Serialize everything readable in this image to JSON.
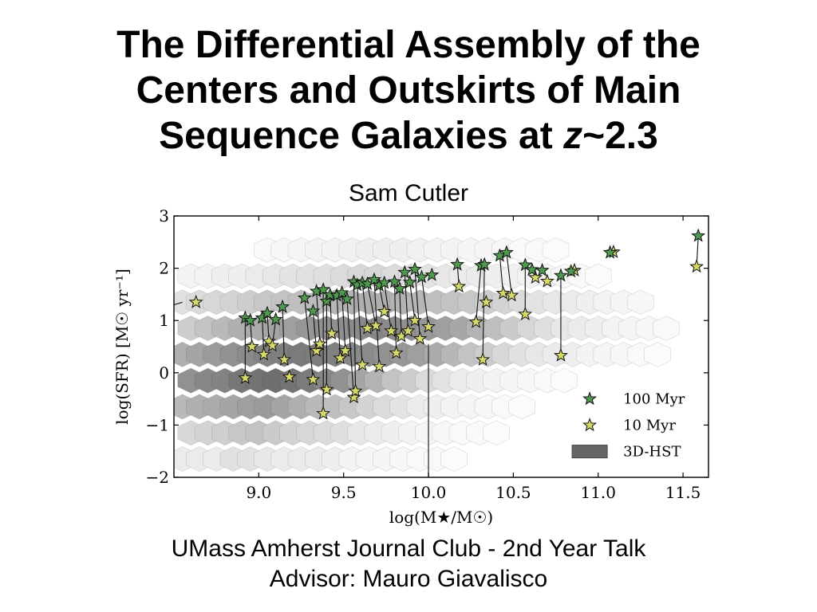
{
  "slide": {
    "title_part1": "The Differential Assembly of the",
    "title_part2": "Centers and Outskirts of Main",
    "title_part3_pre": "Sequence Galaxies at ",
    "title_part3_z": "z",
    "title_part3_post": "~2.3",
    "author": "Sam Cutler",
    "footer_line1": "UMass Amherst Journal Club - 2nd Year Talk",
    "footer_line2": "Advisor: Mauro Giavalisco"
  },
  "chart_data": {
    "type": "scatter",
    "xlabel": "log(M★/M☉)",
    "ylabel": "log(SFR) [M☉ yr⁻¹]",
    "xlim": [
      8.5,
      11.65
    ],
    "ylim": [
      -2,
      3
    ],
    "xticks": [
      "9.0",
      "9.5",
      "10.0",
      "10.5",
      "11.0",
      "11.5"
    ],
    "xtick_values": [
      9.0,
      9.5,
      10.0,
      10.5,
      11.0,
      11.5
    ],
    "yticks": [
      "3",
      "2",
      "1",
      "0",
      "−1",
      "−2"
    ],
    "ytick_values": [
      3,
      2,
      1,
      0,
      -1,
      -2
    ],
    "legend_position": "lower-right",
    "legend": [
      {
        "label": "100 Myr",
        "color": "#4f9a4f",
        "marker": "star"
      },
      {
        "label": "10 Myr",
        "color": "#d6d86a",
        "marker": "star"
      },
      {
        "label": "3D-HST",
        "color": "#666666",
        "marker": "rect"
      }
    ],
    "vertical_line_x": 10.0,
    "series": [
      {
        "name": "100 Myr",
        "marker": "star",
        "color": "#4f9a4f",
        "x": [
          8.92,
          8.95,
          9.02,
          9.05,
          9.1,
          9.14,
          9.27,
          9.32,
          9.34,
          9.38,
          9.4,
          9.42,
          9.46,
          9.49,
          9.52,
          9.56,
          9.58,
          9.61,
          9.64,
          9.68,
          9.71,
          9.74,
          9.8,
          9.83,
          9.86,
          9.89,
          9.92,
          9.96,
          10.02,
          10.17,
          10.31,
          10.33,
          10.42,
          10.46,
          10.57,
          10.61,
          10.67,
          10.78,
          10.84,
          11.07,
          11.59
        ],
        "y": [
          1.05,
          1.0,
          1.05,
          1.14,
          1.02,
          1.26,
          1.43,
          1.18,
          1.56,
          1.59,
          1.37,
          1.49,
          1.48,
          1.53,
          1.41,
          1.74,
          1.68,
          1.72,
          1.7,
          1.78,
          1.67,
          1.72,
          1.74,
          1.61,
          1.92,
          1.73,
          1.98,
          1.83,
          1.87,
          2.07,
          2.05,
          2.07,
          2.24,
          2.3,
          2.06,
          1.97,
          1.96,
          1.86,
          1.94,
          2.3,
          2.62
        ]
      },
      {
        "name": "10 Myr",
        "marker": "star",
        "color": "#d6d86a",
        "x": [
          8.63,
          8.92,
          8.96,
          9.03,
          9.06,
          9.08,
          9.15,
          9.18,
          9.32,
          9.34,
          9.36,
          9.38,
          9.4,
          9.43,
          9.48,
          9.51,
          9.56,
          9.57,
          9.61,
          9.64,
          9.69,
          9.71,
          9.74,
          9.78,
          9.81,
          9.84,
          9.88,
          9.92,
          9.95,
          10.0,
          10.18,
          10.28,
          10.32,
          10.34,
          10.44,
          10.49,
          10.57,
          10.63,
          10.7,
          10.78,
          10.86,
          11.09,
          11.58
        ],
        "y": [
          1.35,
          -0.1,
          0.5,
          0.35,
          0.6,
          0.52,
          0.25,
          -0.08,
          -0.13,
          0.42,
          0.55,
          -0.78,
          -0.32,
          0.75,
          0.28,
          0.42,
          -0.47,
          -0.35,
          0.15,
          0.85,
          0.9,
          0.12,
          1.17,
          0.8,
          0.38,
          0.7,
          0.8,
          1.0,
          0.65,
          0.88,
          1.65,
          0.97,
          0.25,
          1.35,
          1.52,
          1.48,
          1.12,
          1.82,
          1.75,
          0.33,
          1.96,
          2.31,
          2.03
        ]
      },
      {
        "name": "3D-HST",
        "type": "hexbin",
        "color": "#666666",
        "hex_centers_x": [
          8.55,
          8.65,
          8.75,
          8.85,
          8.95,
          9.05,
          9.15,
          9.25,
          9.35,
          9.45,
          9.55,
          9.65,
          9.75,
          9.85,
          9.95,
          10.05,
          10.15,
          8.6,
          8.7,
          8.8,
          8.9,
          9.0,
          9.1,
          9.2,
          9.3,
          9.4,
          9.5,
          9.6,
          9.7,
          9.8,
          9.9,
          10.0,
          10.1,
          10.2,
          10.3,
          10.4,
          8.55,
          8.65,
          8.75,
          8.85,
          8.95,
          9.05,
          9.15,
          9.25,
          9.35,
          9.45,
          9.55,
          9.65,
          9.75,
          9.85,
          9.95,
          10.05,
          10.15,
          10.25,
          10.35,
          10.45,
          10.55,
          8.6,
          8.7,
          8.8,
          8.9,
          9.0,
          9.1,
          9.2,
          9.3,
          9.4,
          9.5,
          9.6,
          9.7,
          9.8,
          9.9,
          10.0,
          10.1,
          10.2,
          10.3,
          10.4,
          10.5,
          10.6,
          10.7,
          10.8,
          8.55,
          8.65,
          8.75,
          8.85,
          8.95,
          9.05,
          9.15,
          9.25,
          9.35,
          9.45,
          9.55,
          9.65,
          9.75,
          9.85,
          9.95,
          10.05,
          10.15,
          10.25,
          10.35,
          10.45,
          10.55,
          10.65,
          10.75,
          10.85,
          10.95,
          11.05,
          11.15,
          11.25,
          11.35,
          8.6,
          8.7,
          8.8,
          8.9,
          9.0,
          9.1,
          9.2,
          9.3,
          9.4,
          9.5,
          9.6,
          9.7,
          9.8,
          9.9,
          10.0,
          10.1,
          10.2,
          10.3,
          10.4,
          10.5,
          10.6,
          10.7,
          10.8,
          10.9,
          11.0,
          11.1,
          11.2,
          11.3,
          11.4,
          8.55,
          8.65,
          8.75,
          8.85,
          8.95,
          9.05,
          9.15,
          9.25,
          9.35,
          9.45,
          9.55,
          9.65,
          9.75,
          9.85,
          9.95,
          10.05,
          10.15,
          10.25,
          10.35,
          10.45,
          10.55,
          10.65,
          10.75,
          10.85,
          10.95,
          11.05,
          11.15,
          11.25,
          8.6,
          8.7,
          8.8,
          8.9,
          9.0,
          9.1,
          9.2,
          9.3,
          9.4,
          9.5,
          9.6,
          9.7,
          9.8,
          9.9,
          10.0,
          10.1,
          10.2,
          10.3,
          10.4,
          10.5,
          10.6,
          10.7,
          10.8,
          10.9,
          11.0,
          9.05,
          9.15,
          9.25,
          9.35,
          9.45,
          9.55,
          9.65,
          9.75,
          9.85,
          9.95,
          10.05,
          10.15,
          10.25,
          10.35,
          10.45,
          10.55,
          10.65,
          10.75
        ],
        "hex_centers_y": [
          -1.65,
          -1.65,
          -1.65,
          -1.65,
          -1.65,
          -1.65,
          -1.65,
          -1.65,
          -1.65,
          -1.65,
          -1.65,
          -1.65,
          -1.65,
          -1.65,
          -1.65,
          -1.65,
          -1.65,
          -1.15,
          -1.15,
          -1.15,
          -1.15,
          -1.15,
          -1.15,
          -1.15,
          -1.15,
          -1.15,
          -1.15,
          -1.15,
          -1.15,
          -1.15,
          -1.15,
          -1.15,
          -1.15,
          -1.15,
          -1.15,
          -1.15,
          -0.65,
          -0.65,
          -0.65,
          -0.65,
          -0.65,
          -0.65,
          -0.65,
          -0.65,
          -0.65,
          -0.65,
          -0.65,
          -0.65,
          -0.65,
          -0.65,
          -0.65,
          -0.65,
          -0.65,
          -0.65,
          -0.65,
          -0.65,
          -0.65,
          -0.15,
          -0.15,
          -0.15,
          -0.15,
          -0.15,
          -0.15,
          -0.15,
          -0.15,
          -0.15,
          -0.15,
          -0.15,
          -0.15,
          -0.15,
          -0.15,
          -0.15,
          -0.15,
          -0.15,
          -0.15,
          -0.15,
          -0.15,
          -0.15,
          -0.15,
          -0.15,
          0.35,
          0.35,
          0.35,
          0.35,
          0.35,
          0.35,
          0.35,
          0.35,
          0.35,
          0.35,
          0.35,
          0.35,
          0.35,
          0.35,
          0.35,
          0.35,
          0.35,
          0.35,
          0.35,
          0.35,
          0.35,
          0.35,
          0.35,
          0.35,
          0.35,
          0.35,
          0.35,
          0.35,
          0.35,
          0.85,
          0.85,
          0.85,
          0.85,
          0.85,
          0.85,
          0.85,
          0.85,
          0.85,
          0.85,
          0.85,
          0.85,
          0.85,
          0.85,
          0.85,
          0.85,
          0.85,
          0.85,
          0.85,
          0.85,
          0.85,
          0.85,
          0.85,
          0.85,
          0.85,
          0.85,
          0.85,
          0.85,
          0.85,
          1.35,
          1.35,
          1.35,
          1.35,
          1.35,
          1.35,
          1.35,
          1.35,
          1.35,
          1.35,
          1.35,
          1.35,
          1.35,
          1.35,
          1.35,
          1.35,
          1.35,
          1.35,
          1.35,
          1.35,
          1.35,
          1.35,
          1.35,
          1.35,
          1.35,
          1.35,
          1.35,
          1.35,
          1.85,
          1.85,
          1.85,
          1.85,
          1.85,
          1.85,
          1.85,
          1.85,
          1.85,
          1.85,
          1.85,
          1.85,
          1.85,
          1.85,
          1.85,
          1.85,
          1.85,
          1.85,
          1.85,
          1.85,
          1.85,
          1.85,
          1.85,
          1.85,
          1.85,
          2.35,
          2.35,
          2.35,
          2.35,
          2.35,
          2.35,
          2.35,
          2.35,
          2.35,
          2.35,
          2.35,
          2.35,
          2.35,
          2.35,
          2.35,
          2.35,
          2.35,
          2.35
        ],
        "hex_density": [
          0.1,
          0.1,
          0.1,
          0.15,
          0.15,
          0.12,
          0.1,
          0.1,
          0.1,
          0.08,
          0.06,
          0.05,
          0.05,
          0.04,
          0.03,
          0.03,
          0.02,
          0.2,
          0.22,
          0.24,
          0.28,
          0.3,
          0.26,
          0.22,
          0.2,
          0.18,
          0.16,
          0.12,
          0.1,
          0.08,
          0.06,
          0.05,
          0.04,
          0.03,
          0.03,
          0.02,
          0.35,
          0.4,
          0.42,
          0.45,
          0.48,
          0.5,
          0.45,
          0.4,
          0.35,
          0.32,
          0.28,
          0.22,
          0.18,
          0.14,
          0.1,
          0.08,
          0.06,
          0.05,
          0.04,
          0.03,
          0.02,
          0.55,
          0.6,
          0.62,
          0.68,
          0.7,
          0.72,
          0.7,
          0.66,
          0.6,
          0.55,
          0.45,
          0.38,
          0.3,
          0.25,
          0.18,
          0.14,
          0.1,
          0.08,
          0.06,
          0.05,
          0.04,
          0.03,
          0.02,
          0.4,
          0.45,
          0.5,
          0.55,
          0.58,
          0.62,
          0.64,
          0.66,
          0.65,
          0.63,
          0.6,
          0.58,
          0.55,
          0.52,
          0.48,
          0.42,
          0.36,
          0.3,
          0.25,
          0.2,
          0.15,
          0.12,
          0.1,
          0.08,
          0.06,
          0.05,
          0.04,
          0.03,
          0.02,
          0.25,
          0.3,
          0.35,
          0.4,
          0.42,
          0.45,
          0.48,
          0.52,
          0.55,
          0.56,
          0.58,
          0.6,
          0.58,
          0.56,
          0.52,
          0.48,
          0.44,
          0.38,
          0.32,
          0.26,
          0.2,
          0.16,
          0.12,
          0.1,
          0.08,
          0.06,
          0.05,
          0.04,
          0.03,
          0.15,
          0.18,
          0.2,
          0.22,
          0.25,
          0.28,
          0.3,
          0.32,
          0.34,
          0.36,
          0.38,
          0.4,
          0.4,
          0.38,
          0.36,
          0.32,
          0.3,
          0.28,
          0.25,
          0.22,
          0.18,
          0.14,
          0.12,
          0.1,
          0.08,
          0.06,
          0.05,
          0.04,
          0.06,
          0.06,
          0.08,
          0.08,
          0.1,
          0.12,
          0.14,
          0.15,
          0.16,
          0.18,
          0.2,
          0.2,
          0.18,
          0.16,
          0.14,
          0.12,
          0.1,
          0.1,
          0.08,
          0.07,
          0.06,
          0.05,
          0.04,
          0.03,
          0.02,
          0.03,
          0.04,
          0.05,
          0.06,
          0.06,
          0.07,
          0.08,
          0.08,
          0.08,
          0.07,
          0.06,
          0.06,
          0.05,
          0.05,
          0.04,
          0.03,
          0.03,
          0.02
        ]
      }
    ],
    "pairs": [
      [
        8.92,
        1.05,
        8.92,
        -0.1
      ],
      [
        8.95,
        1.0,
        8.96,
        0.5
      ],
      [
        9.02,
        1.05,
        9.03,
        0.35
      ],
      [
        9.05,
        1.14,
        9.06,
        0.6
      ],
      [
        9.1,
        1.02,
        9.08,
        0.52
      ],
      [
        9.14,
        1.26,
        9.15,
        0.25
      ],
      [
        9.27,
        1.43,
        9.32,
        -0.13
      ],
      [
        9.32,
        1.18,
        9.34,
        0.42
      ],
      [
        9.34,
        1.56,
        9.36,
        0.55
      ],
      [
        9.38,
        1.59,
        9.38,
        -0.78
      ],
      [
        9.4,
        1.37,
        9.4,
        -0.32
      ],
      [
        9.42,
        1.49,
        9.43,
        0.75
      ],
      [
        9.46,
        1.48,
        9.48,
        0.28
      ],
      [
        9.49,
        1.53,
        9.51,
        0.42
      ],
      [
        9.52,
        1.41,
        9.56,
        -0.47
      ],
      [
        9.56,
        1.74,
        9.57,
        -0.35
      ],
      [
        9.58,
        1.68,
        9.61,
        0.15
      ],
      [
        9.61,
        1.72,
        9.64,
        0.85
      ],
      [
        9.64,
        1.7,
        9.69,
        0.9
      ],
      [
        9.68,
        1.78,
        9.71,
        0.12
      ],
      [
        9.71,
        1.67,
        9.74,
        1.17
      ],
      [
        9.74,
        1.72,
        9.78,
        0.8
      ],
      [
        9.8,
        1.74,
        9.81,
        0.38
      ],
      [
        9.83,
        1.61,
        9.84,
        0.7
      ],
      [
        9.86,
        1.92,
        9.88,
        0.8
      ],
      [
        9.89,
        1.73,
        9.92,
        1.0
      ],
      [
        9.92,
        1.98,
        9.95,
        0.65
      ],
      [
        9.96,
        1.83,
        10.0,
        0.88
      ],
      [
        10.17,
        2.07,
        10.18,
        1.65
      ],
      [
        10.31,
        2.05,
        10.28,
        0.97
      ],
      [
        10.33,
        2.07,
        10.32,
        0.25
      ],
      [
        10.42,
        2.24,
        10.44,
        1.52
      ],
      [
        10.46,
        2.3,
        10.49,
        1.48
      ],
      [
        10.57,
        2.06,
        10.57,
        1.12
      ],
      [
        10.61,
        1.97,
        10.63,
        1.82
      ],
      [
        10.78,
        1.86,
        10.78,
        0.33
      ],
      [
        11.07,
        2.3,
        11.09,
        2.31
      ],
      [
        11.59,
        2.62,
        11.58,
        2.03
      ]
    ]
  }
}
